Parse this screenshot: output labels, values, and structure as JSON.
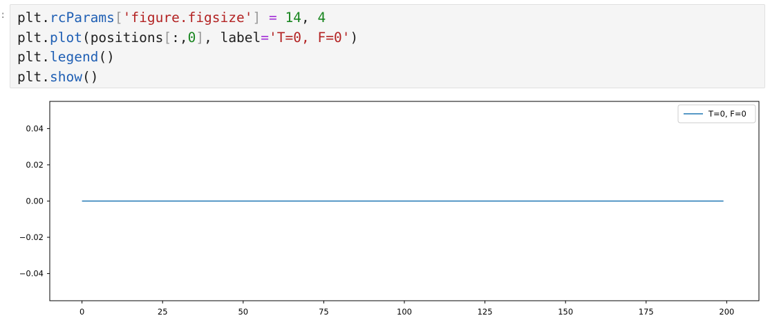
{
  "cell": {
    "prompt_char": ":",
    "lines": [
      [
        {
          "text": "plt",
          "cls": "t-name"
        },
        {
          "text": ".",
          "cls": "t-punc"
        },
        {
          "text": "rcParams",
          "cls": "t-attr"
        },
        {
          "text": "[",
          "cls": "t-bracket"
        },
        {
          "text": "'figure.figsize'",
          "cls": "t-str"
        },
        {
          "text": "]",
          "cls": "t-bracket"
        },
        {
          "text": " ",
          "cls": "t-punc"
        },
        {
          "text": "=",
          "cls": "t-op"
        },
        {
          "text": " ",
          "cls": "t-punc"
        },
        {
          "text": "14",
          "cls": "t-num"
        },
        {
          "text": ", ",
          "cls": "t-punc"
        },
        {
          "text": "4",
          "cls": "t-num"
        }
      ],
      [
        {
          "text": "plt",
          "cls": "t-name"
        },
        {
          "text": ".",
          "cls": "t-punc"
        },
        {
          "text": "plot",
          "cls": "t-attr"
        },
        {
          "text": "(positions",
          "cls": "t-punc"
        },
        {
          "text": "[",
          "cls": "t-bracket"
        },
        {
          "text": ":,",
          "cls": "t-punc"
        },
        {
          "text": "0",
          "cls": "t-num"
        },
        {
          "text": "]",
          "cls": "t-bracket"
        },
        {
          "text": ", label",
          "cls": "t-punc"
        },
        {
          "text": "=",
          "cls": "t-op"
        },
        {
          "text": "'T=0, F=0'",
          "cls": "t-str"
        },
        {
          "text": ")",
          "cls": "t-punc"
        }
      ],
      [
        {
          "text": "plt",
          "cls": "t-name"
        },
        {
          "text": ".",
          "cls": "t-punc"
        },
        {
          "text": "legend",
          "cls": "t-attr"
        },
        {
          "text": "()",
          "cls": "t-punc"
        }
      ],
      [
        {
          "text": "plt",
          "cls": "t-name"
        },
        {
          "text": ".",
          "cls": "t-punc"
        },
        {
          "text": "show",
          "cls": "t-attr"
        },
        {
          "text": "()",
          "cls": "t-punc"
        }
      ]
    ]
  },
  "colors": {
    "series": "#1f77b4",
    "axis": "#000000",
    "legend_border": "#cccccc"
  },
  "chart_data": {
    "type": "line",
    "title": "",
    "xlabel": "",
    "ylabel": "",
    "xlim": [
      -10,
      210
    ],
    "ylim": [
      -0.055,
      0.055
    ],
    "xticks": [
      0,
      25,
      50,
      75,
      100,
      125,
      150,
      175,
      200
    ],
    "xtick_labels": [
      "0",
      "25",
      "50",
      "75",
      "100",
      "125",
      "150",
      "175",
      "200"
    ],
    "yticks": [
      0.04,
      0.02,
      0.0,
      -0.02,
      -0.04
    ],
    "ytick_labels": [
      "0.04",
      "0.02",
      "0.00",
      "−0.02",
      "−0.04"
    ],
    "grid": false,
    "legend_position": "top-right",
    "series": [
      {
        "name": "T=0, F=0",
        "x": [
          0,
          199
        ],
        "y": [
          0,
          0
        ]
      }
    ]
  }
}
